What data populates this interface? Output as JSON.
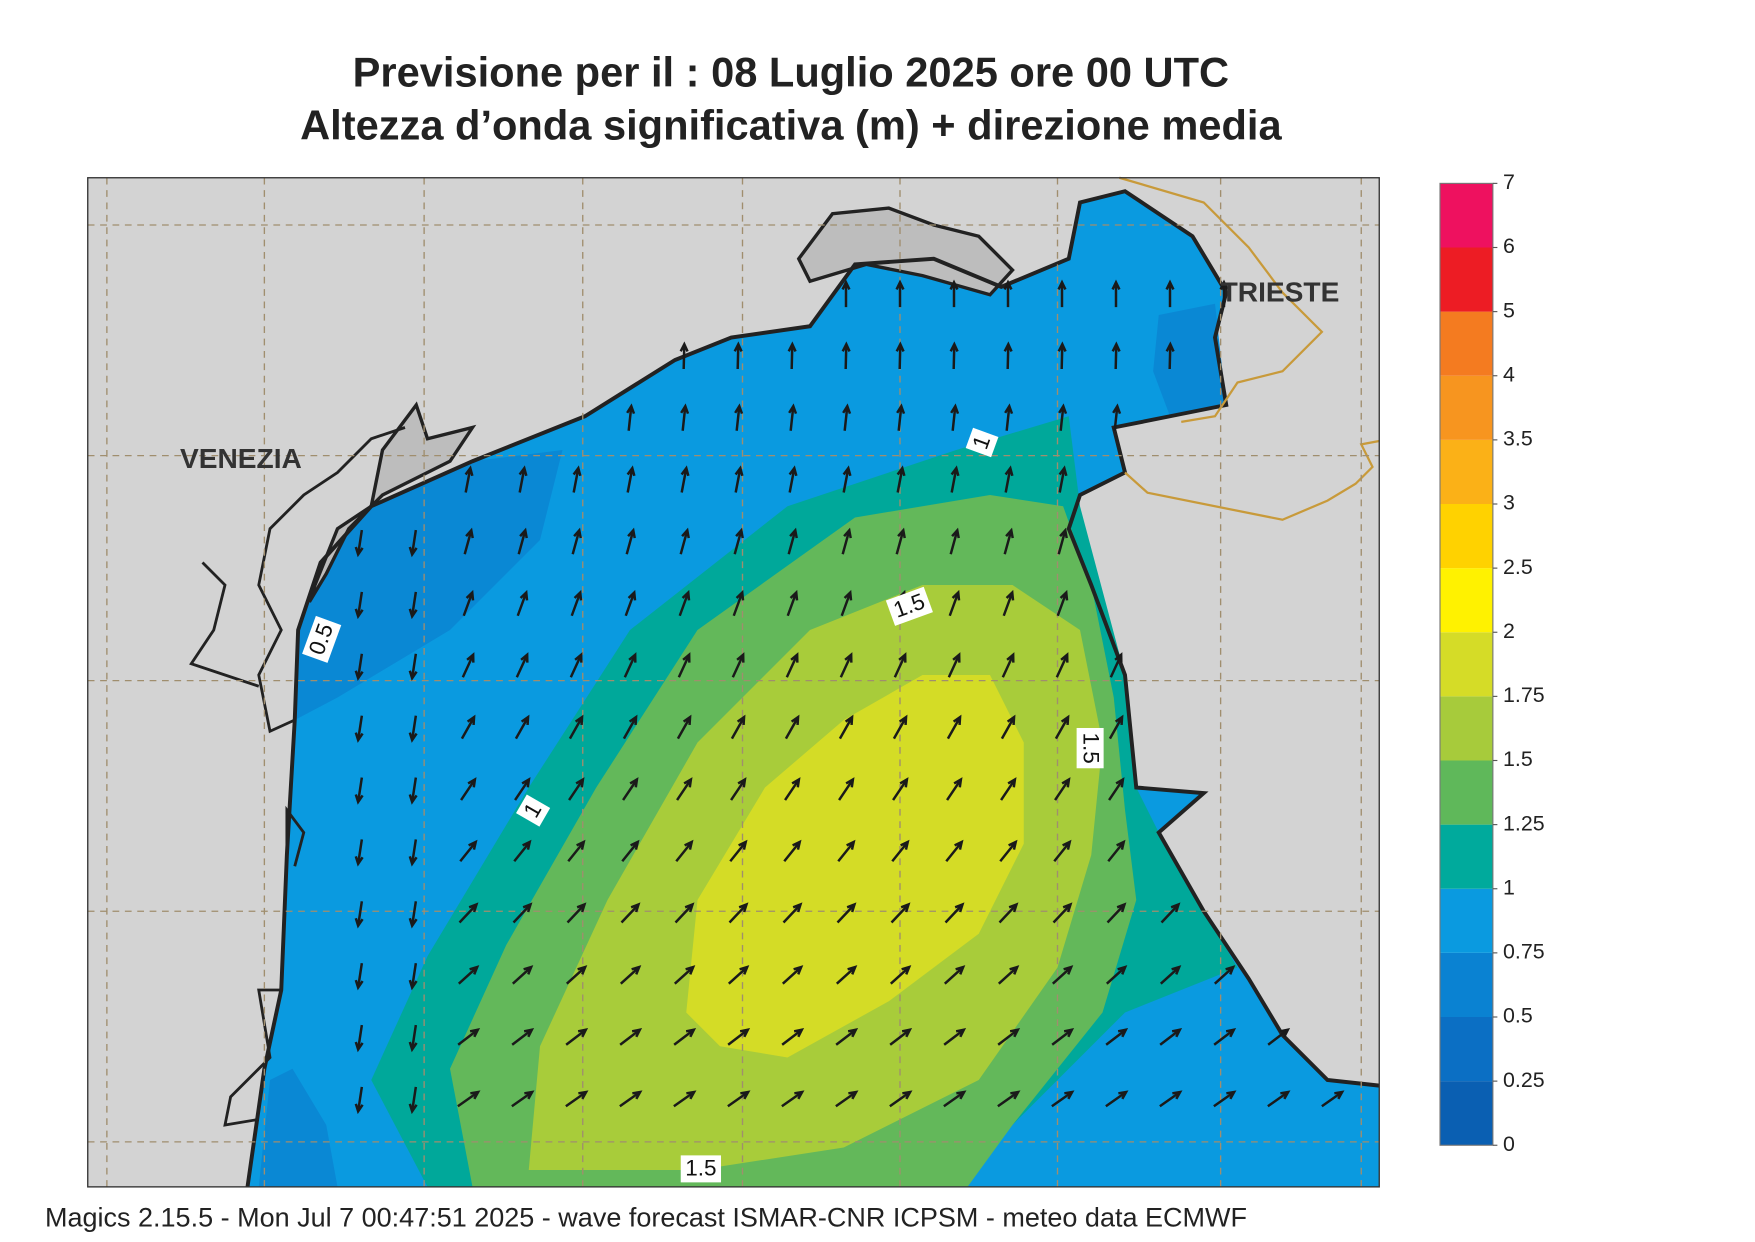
{
  "title": [
    "Previsione per il  :  08  Luglio   2025   ore 00 UTC",
    "Altezza d’onda significativa (m) + direzione media"
  ],
  "map_labels": [
    "VENEZIA",
    "TRIESTE"
  ],
  "contour_labels": [
    "0.5",
    "1",
    "1",
    "1.5",
    "1.5",
    "1.5"
  ],
  "legend": {
    "ticks": [
      0,
      0.25,
      0.5,
      0.75,
      1,
      1.25,
      1.5,
      1.75,
      2,
      2.5,
      3,
      3.5,
      4,
      5,
      6,
      7
    ],
    "colors": [
      "#0a5fb2",
      "#0b6fc4",
      "#0a82d2",
      "#0a9ae0",
      "#00aa9c",
      "#5fb85a",
      "#a7cb3b",
      "#d5dc27",
      "#fff200",
      "#ffd200",
      "#fbb117",
      "#f7951f",
      "#f47b20",
      "#ed1c24",
      "#ee115f"
    ]
  },
  "footer": "Magics 2.15.5 - Mon Jul  7 00:47:51 2025 - wave forecast  ISMAR-CNR  ICPSM - meteo data   ECMWF"
}
